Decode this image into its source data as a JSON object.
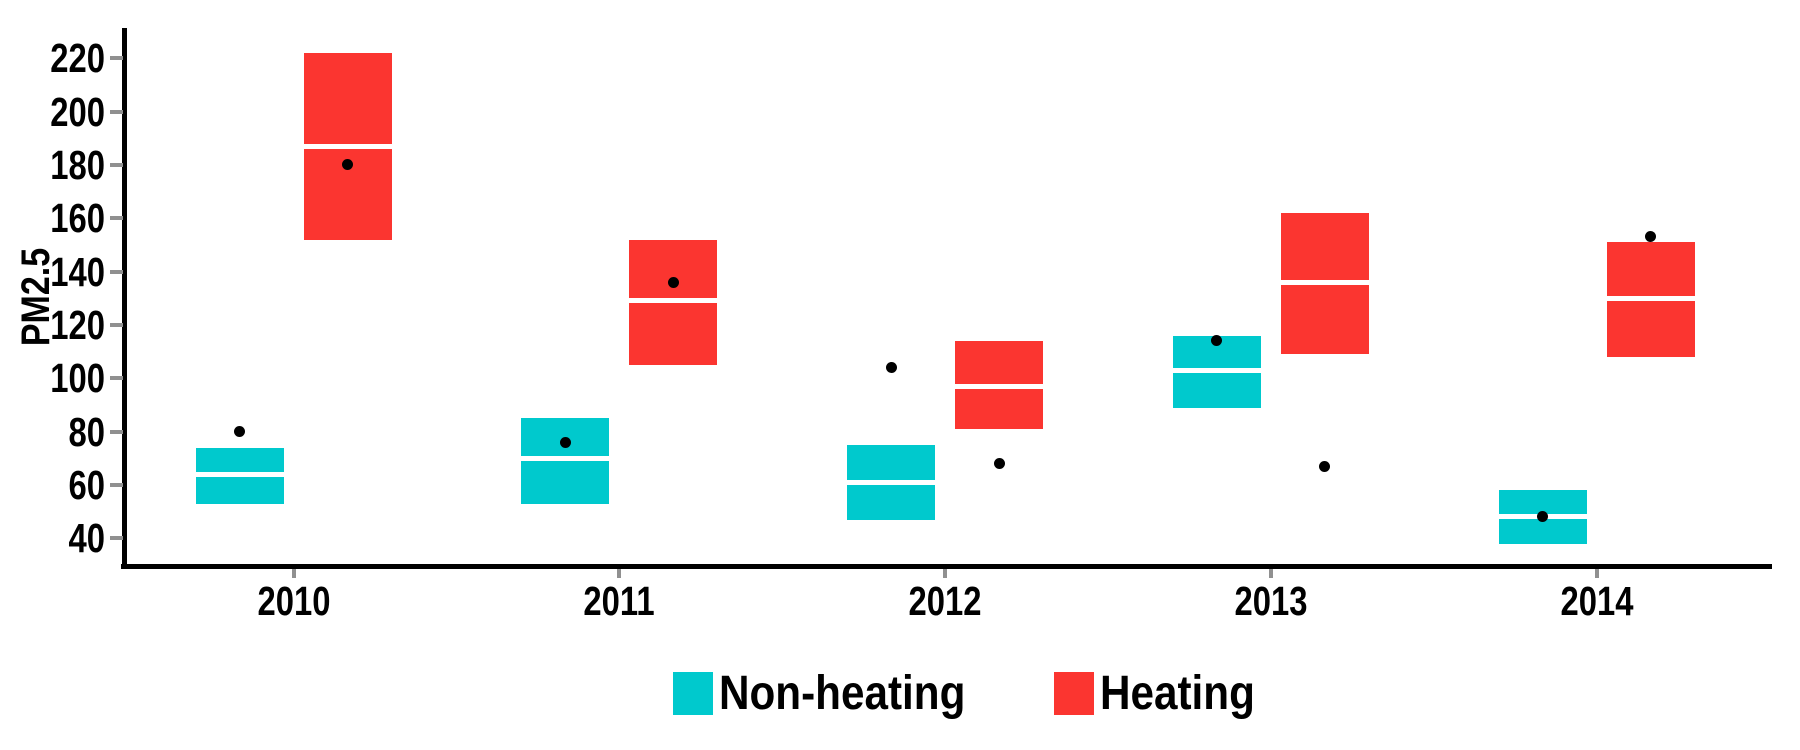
{
  "chart_data": {
    "type": "crossbar",
    "title": "",
    "ylabel": "PM2.5",
    "xlabel": "",
    "categories": [
      "2010",
      "2011",
      "2012",
      "2013",
      "2014"
    ],
    "y_ticks": [
      220,
      200,
      180,
      160,
      140,
      120,
      100,
      80,
      60,
      40
    ],
    "ylim": [
      30,
      232
    ],
    "grid": false,
    "legend_position": "bottom",
    "background": "#ffffff",
    "axis_color": "#000000",
    "tick_mark_color": "#909090",
    "median_line_color": "#ffffff",
    "point_color": "#000000",
    "series": [
      {
        "name": "Non-heating",
        "color": "#00C9CD",
        "boxes": [
          {
            "category": "2010",
            "ymin": 53,
            "mid": 64,
            "ymax": 74,
            "point": 80
          },
          {
            "category": "2011",
            "ymin": 53,
            "mid": 70,
            "ymax": 85,
            "point": 76
          },
          {
            "category": "2012",
            "ymin": 47,
            "mid": 61,
            "ymax": 75,
            "point": 104
          },
          {
            "category": "2013",
            "ymin": 89,
            "mid": 103,
            "ymax": 116,
            "point": 114
          },
          {
            "category": "2014",
            "ymin": 38,
            "mid": 48,
            "ymax": 58,
            "point": 48
          }
        ]
      },
      {
        "name": "Heating",
        "color": "#FB3530",
        "boxes": [
          {
            "category": "2010",
            "ymin": 152,
            "mid": 187,
            "ymax": 222,
            "point": 180
          },
          {
            "category": "2011",
            "ymin": 105,
            "mid": 129,
            "ymax": 152,
            "point": 136
          },
          {
            "category": "2012",
            "ymin": 81,
            "mid": 97,
            "ymax": 114,
            "point": 68
          },
          {
            "category": "2013",
            "ymin": 109,
            "mid": 136,
            "ymax": 162,
            "point": 67
          },
          {
            "category": "2014",
            "ymin": 108,
            "mid": 130,
            "ymax": 151,
            "point": 153
          }
        ]
      }
    ]
  }
}
